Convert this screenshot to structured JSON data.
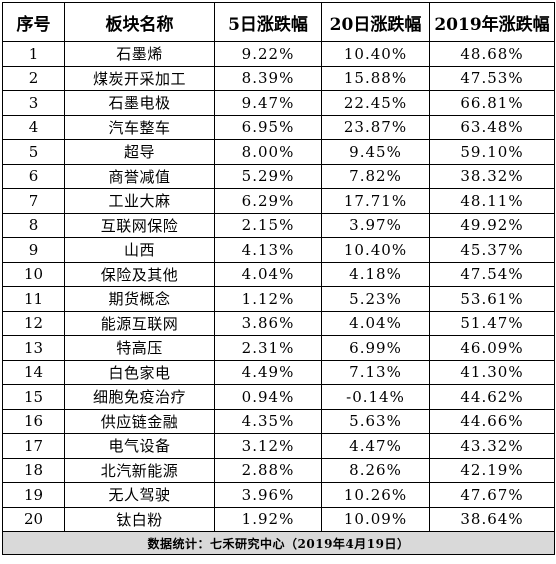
{
  "table": {
    "headers": [
      "序号",
      "板块名称",
      "5日涨跌幅",
      "20日涨跌幅",
      "2019年涨跌幅"
    ],
    "rows": [
      [
        "1",
        "石墨烯",
        "9.22%",
        "10.40%",
        "48.68%"
      ],
      [
        "2",
        "煤炭开采加工",
        "8.39%",
        "15.88%",
        "47.53%"
      ],
      [
        "3",
        "石墨电极",
        "9.47%",
        "22.45%",
        "66.81%"
      ],
      [
        "4",
        "汽车整车",
        "6.95%",
        "23.87%",
        "63.48%"
      ],
      [
        "5",
        "超导",
        "8.00%",
        "9.45%",
        "59.10%"
      ],
      [
        "6",
        "商誉减值",
        "5.29%",
        "7.82%",
        "38.32%"
      ],
      [
        "7",
        "工业大麻",
        "6.29%",
        "17.71%",
        "48.11%"
      ],
      [
        "8",
        "互联网保险",
        "2.15%",
        "3.97%",
        "49.92%"
      ],
      [
        "9",
        "山西",
        "4.13%",
        "10.40%",
        "45.37%"
      ],
      [
        "10",
        "保险及其他",
        "4.04%",
        "4.18%",
        "47.54%"
      ],
      [
        "11",
        "期货概念",
        "1.12%",
        "5.23%",
        "53.61%"
      ],
      [
        "12",
        "能源互联网",
        "3.86%",
        "4.04%",
        "51.47%"
      ],
      [
        "13",
        "特高压",
        "2.31%",
        "6.99%",
        "46.09%"
      ],
      [
        "14",
        "白色家电",
        "4.49%",
        "7.13%",
        "41.30%"
      ],
      [
        "15",
        "细胞免疫治疗",
        "0.94%",
        "-0.14%",
        "44.62%"
      ],
      [
        "16",
        "供应链金融",
        "4.35%",
        "5.63%",
        "44.66%"
      ],
      [
        "17",
        "电气设备",
        "3.12%",
        "4.47%",
        "43.32%"
      ],
      [
        "18",
        "北汽新能源",
        "2.88%",
        "8.26%",
        "42.19%"
      ],
      [
        "19",
        "无人驾驶",
        "3.96%",
        "10.26%",
        "47.67%"
      ],
      [
        "20",
        "钛白粉",
        "1.92%",
        "10.09%",
        "38.64%"
      ]
    ],
    "footer": "数据统计：七禾研究中心（2019年4月19日）"
  },
  "colors": {
    "border": "#000000",
    "footer_background": "#d9d9d9",
    "text": "#000000"
  }
}
